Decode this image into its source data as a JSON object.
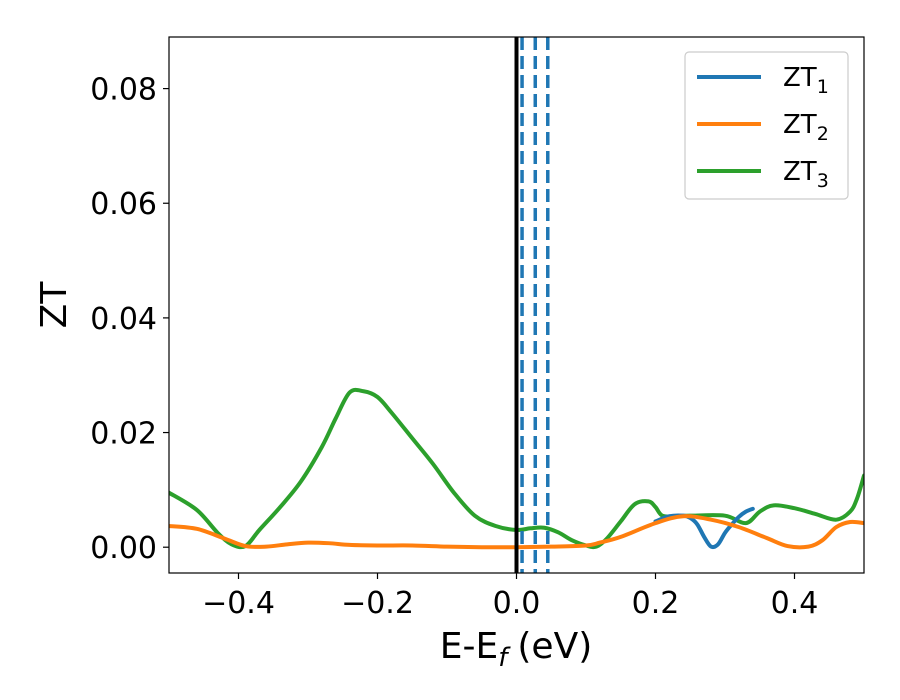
{
  "chart_data": {
    "type": "line",
    "xlabel": "E-E",
    "xlabel_sub": "f",
    "xlabel_unit": "(eV)",
    "ylabel": "ZT",
    "xlim": [
      -0.5,
      0.5
    ],
    "ylim": [
      -0.0045,
      0.089
    ],
    "x_ticks": [
      -0.4,
      -0.2,
      0.0,
      0.2,
      0.4
    ],
    "x_tick_labels": [
      "−0.4",
      "−0.2",
      "0.0",
      "0.2",
      "0.4"
    ],
    "y_ticks": [
      0.0,
      0.02,
      0.04,
      0.06,
      0.08
    ],
    "y_tick_labels": [
      "0.00",
      "0.02",
      "0.04",
      "0.06",
      "0.08"
    ],
    "grid": false,
    "legend_position": "top-right",
    "colors": {
      "ZT1": "#1f77b4",
      "ZT2": "#ff7f0e",
      "ZT3": "#2ca02c",
      "fermi_line": "#000000",
      "marker_lines": "#1f77b4"
    },
    "vertical_lines": [
      {
        "x": 0.0,
        "style": "solid",
        "color": "#000000"
      },
      {
        "x": 0.008,
        "style": "dashed",
        "color": "#1f77b4"
      },
      {
        "x": 0.027,
        "style": "dashed",
        "color": "#1f77b4"
      },
      {
        "x": 0.045,
        "style": "dashed",
        "color": "#1f77b4"
      }
    ],
    "series": [
      {
        "name": "ZT",
        "name_sub": "1",
        "color": "#1f77b4",
        "x": [
          0.2,
          0.22,
          0.24,
          0.25,
          0.26,
          0.27,
          0.28,
          0.29,
          0.3,
          0.31,
          0.32,
          0.33,
          0.34
        ],
        "y": [
          0.0045,
          0.0054,
          0.0055,
          0.0051,
          0.004,
          0.0018,
          0.0001,
          0.0005,
          0.0025,
          0.004,
          0.0053,
          0.0062,
          0.0067
        ]
      },
      {
        "name": "ZT",
        "name_sub": "2",
        "color": "#ff7f0e",
        "x": [
          -0.5,
          -0.46,
          -0.42,
          -0.39,
          -0.36,
          -0.33,
          -0.3,
          -0.27,
          -0.24,
          -0.2,
          -0.15,
          -0.1,
          -0.05,
          0.0,
          0.05,
          0.1,
          0.12,
          0.15,
          0.2,
          0.24,
          0.28,
          0.32,
          0.36,
          0.39,
          0.42,
          0.44,
          0.46,
          0.48,
          0.5
        ],
        "y": [
          0.0037,
          0.0032,
          0.0015,
          0.0002,
          0.0001,
          0.0005,
          0.0008,
          0.0007,
          0.0004,
          0.0003,
          0.0003,
          0.0001,
          0.0,
          0.0,
          0.0001,
          0.0003,
          0.0008,
          0.0018,
          0.0042,
          0.0054,
          0.0048,
          0.0035,
          0.0016,
          0.0002,
          0.0001,
          0.0012,
          0.0035,
          0.0044,
          0.0042
        ]
      },
      {
        "name": "ZT",
        "name_sub": "3",
        "color": "#2ca02c",
        "x": [
          -0.5,
          -0.46,
          -0.43,
          -0.41,
          -0.39,
          -0.37,
          -0.34,
          -0.31,
          -0.28,
          -0.26,
          -0.24,
          -0.22,
          -0.2,
          -0.18,
          -0.15,
          -0.12,
          -0.09,
          -0.06,
          -0.03,
          0.0,
          0.02,
          0.04,
          0.06,
          0.08,
          0.1,
          0.115,
          0.13,
          0.15,
          0.17,
          0.19,
          0.2,
          0.21,
          0.23,
          0.25,
          0.3,
          0.33,
          0.35,
          0.37,
          0.4,
          0.43,
          0.46,
          0.48,
          0.49,
          0.5
        ],
        "y": [
          0.0095,
          0.0065,
          0.0025,
          0.0005,
          0.0002,
          0.003,
          0.007,
          0.0115,
          0.0175,
          0.0225,
          0.027,
          0.0272,
          0.0262,
          0.0235,
          0.019,
          0.0145,
          0.0095,
          0.0055,
          0.0037,
          0.003,
          0.0033,
          0.0034,
          0.0026,
          0.0012,
          0.0003,
          0.0001,
          0.0015,
          0.0045,
          0.0075,
          0.008,
          0.007,
          0.0055,
          0.0054,
          0.0055,
          0.0055,
          0.0042,
          0.0062,
          0.0073,
          0.0068,
          0.0058,
          0.0048,
          0.0062,
          0.0085,
          0.0125
        ]
      }
    ]
  }
}
